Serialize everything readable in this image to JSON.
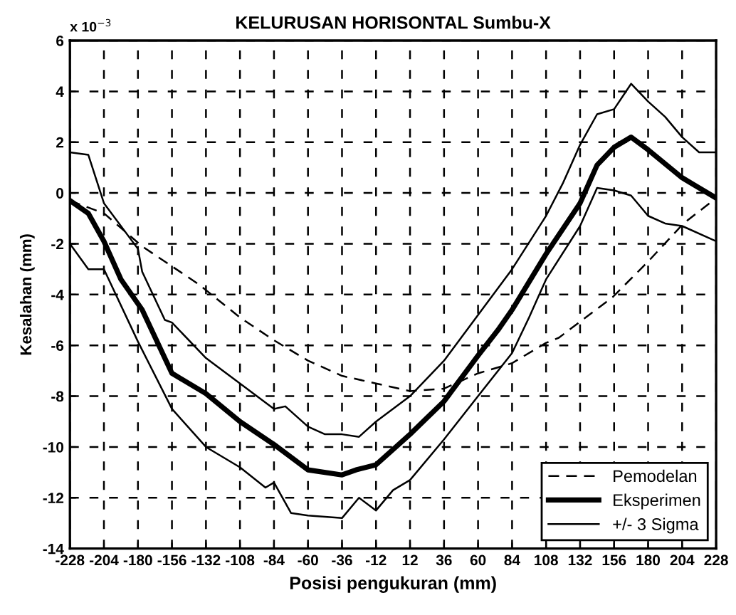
{
  "chart_data": {
    "type": "line",
    "title": "KELURUSAN HORISONTAL Sumbu-X",
    "xlabel": "Posisi pengukuran (mm)",
    "ylabel": "Kesalahan (mm)",
    "annotations": [
      "x 10$^{−3}$"
    ],
    "series": [
      {
        "name": "Pemodelan",
        "color": "#000000",
        "line_style": "dashed",
        "x": [
          -228,
          -204,
          -177,
          -137,
          -108,
          -84,
          -60,
          -36,
          -12,
          12,
          36,
          60,
          84,
          108,
          117,
          155,
          180,
          205,
          228
        ],
        "values": [
          -0.3,
          -0.8,
          -2.1,
          -3.6,
          -4.9,
          -5.8,
          -6.6,
          -7.2,
          -7.5,
          -7.8,
          -7.7,
          -7.1,
          -6.7,
          -5.9,
          -5.7,
          -4.1,
          -2.7,
          -1.2,
          -0.2
        ]
      },
      {
        "name": "Eksperimen",
        "color": "#000000",
        "line_style": "solid",
        "x": [
          -228,
          -215,
          -204,
          -192,
          -177,
          -156,
          -132,
          -108,
          -84,
          -60,
          -36,
          -26,
          -12,
          12,
          36,
          60,
          74,
          84,
          108,
          132,
          144,
          156,
          168,
          180,
          204,
          228
        ],
        "values": [
          -0.3,
          -0.8,
          -1.9,
          -3.4,
          -4.6,
          -7.1,
          -7.9,
          -9.0,
          -9.9,
          -10.9,
          -11.1,
          -10.9,
          -10.7,
          -9.5,
          -8.2,
          -6.4,
          -5.4,
          -4.6,
          -2.4,
          -0.4,
          1.1,
          1.8,
          2.2,
          1.7,
          0.6,
          -0.2
        ]
      },
      {
        "name": "+/- 3 Sigma",
        "color": "#000000",
        "line_style": "solid",
        "x": [
          -228,
          -215,
          -204,
          -180,
          -177,
          -161,
          -156,
          -132,
          -108,
          -84,
          -76,
          -60,
          -48,
          -36,
          -24,
          -12,
          12,
          36,
          60,
          84,
          108,
          120,
          132,
          144,
          156,
          168,
          180,
          192,
          204,
          216,
          228
        ],
        "values": [
          1.6,
          1.5,
          -0.4,
          -2.2,
          -3.1,
          -5.0,
          -5.1,
          -6.5,
          -7.5,
          -8.5,
          -8.4,
          -9.2,
          -9.5,
          -9.5,
          -9.6,
          -9.0,
          -8.0,
          -6.6,
          -4.8,
          -3.0,
          -0.9,
          0.4,
          1.9,
          3.1,
          3.3,
          4.3,
          3.6,
          3.0,
          2.2,
          1.6,
          1.6
        ]
      },
      {
        "color": "#000000",
        "line_style": "solid",
        "x": [
          -228,
          -215,
          -204,
          -180,
          -156,
          -132,
          -108,
          -90,
          -84,
          -72,
          -60,
          -36,
          -24,
          -12,
          0,
          12,
          36,
          60,
          84,
          96,
          108,
          132,
          144,
          156,
          168,
          180,
          192,
          204,
          228
        ],
        "values": [
          -2.0,
          -3.0,
          -3.0,
          -5.85,
          -8.5,
          -10.0,
          -10.8,
          -11.6,
          -11.4,
          -12.6,
          -12.7,
          -12.8,
          -12.0,
          -12.5,
          -11.7,
          -11.3,
          -9.7,
          -8.0,
          -6.3,
          -4.9,
          -3.4,
          -1.3,
          0.2,
          0.1,
          -0.1,
          -0.9,
          -1.2,
          -1.3,
          -1.9
        ]
      }
    ],
    "xlim": [
      -228,
      228
    ],
    "xticks": [
      -228,
      -204,
      -180,
      -156,
      -132,
      -108,
      -84,
      -60,
      -36,
      -12,
      12,
      36,
      60,
      84,
      108,
      132,
      156,
      180,
      204,
      228
    ],
    "ylim": [
      -14,
      6
    ],
    "yticks": [
      -14,
      -12,
      -10,
      -8,
      -6,
      -4,
      -2,
      0,
      2,
      4,
      6
    ],
    "grid": true,
    "legend": "bottom right",
    "marker": "none"
  }
}
